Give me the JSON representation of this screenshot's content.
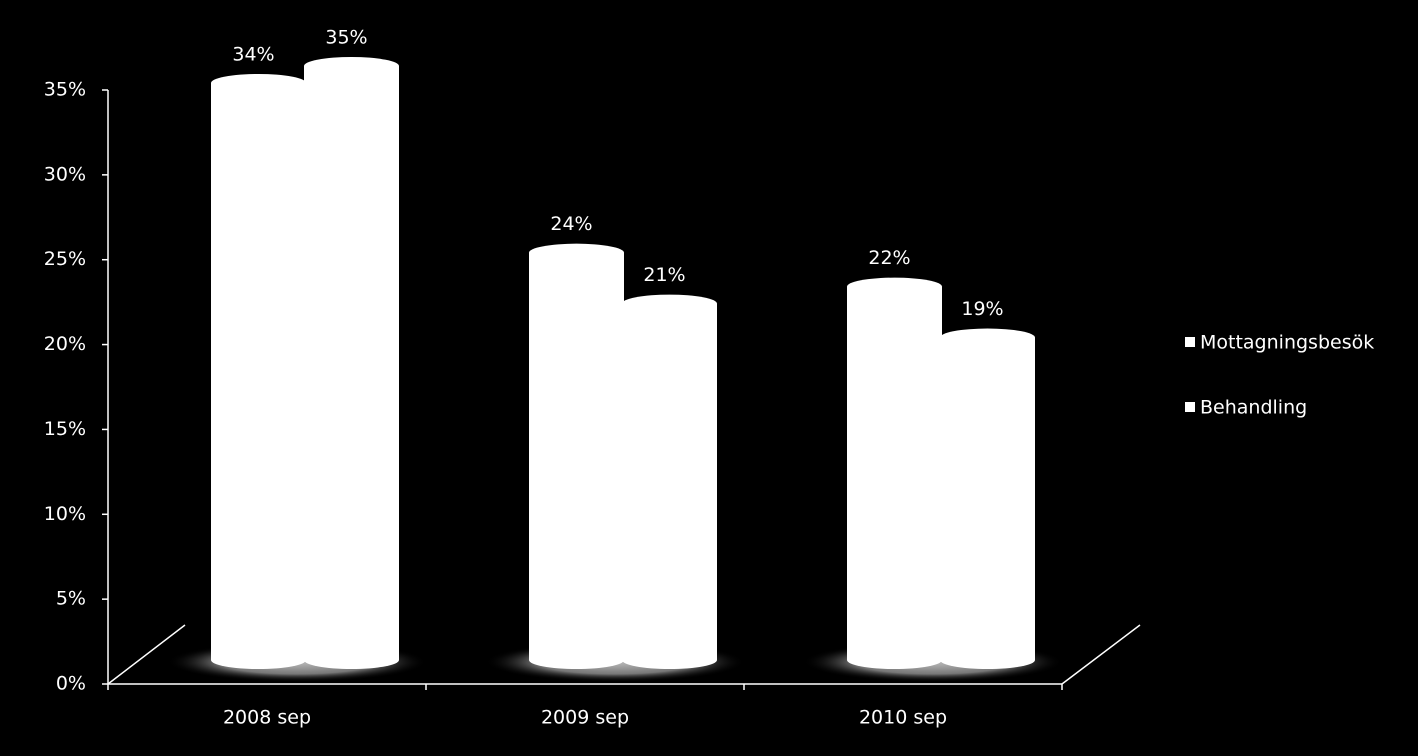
{
  "chart_data": {
    "type": "bar",
    "categories": [
      "2008 sep",
      "2009 sep",
      "2010 sep"
    ],
    "series": [
      {
        "name": "Mottagningsbesök",
        "color": "#ffffff",
        "values": [
          34,
          24,
          22
        ],
        "value_labels": [
          "34%",
          "24%",
          "22%"
        ]
      },
      {
        "name": "Behandling",
        "color": "#ffffff",
        "values": [
          35,
          21,
          19
        ],
        "value_labels": [
          "35%",
          "21%",
          "19%"
        ]
      }
    ],
    "ylim": [
      0,
      35
    ],
    "yticks": [
      {
        "value": 0,
        "label": "0%"
      },
      {
        "value": 5,
        "label": "5%"
      },
      {
        "value": 10,
        "label": "10%"
      },
      {
        "value": 15,
        "label": "15%"
      },
      {
        "value": 20,
        "label": "20%"
      },
      {
        "value": 25,
        "label": "25%"
      },
      {
        "value": 30,
        "label": "30%"
      },
      {
        "value": 35,
        "label": "35%"
      }
    ],
    "legend": "right"
  }
}
